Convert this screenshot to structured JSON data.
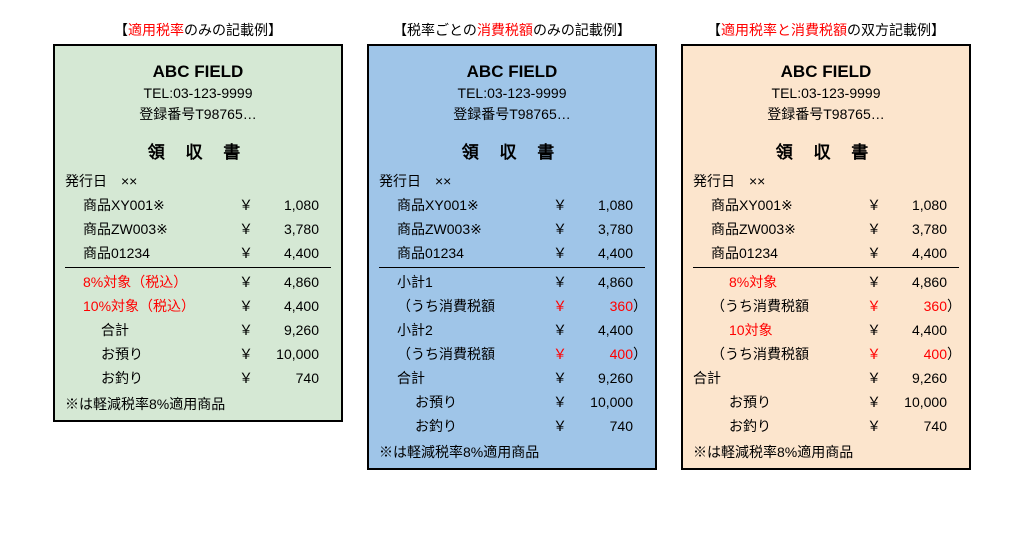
{
  "common": {
    "store": "ABC  FIELD",
    "tel": "TEL:03-123-9999",
    "reg": "登録番号T98765…",
    "doc_title": "領 収 書",
    "issue_label": "発行日",
    "issue_date": "××",
    "yen": "￥",
    "note": "※は軽減税率8%適用商品",
    "items": [
      {
        "name": "商品XY001※",
        "amount": "1,080"
      },
      {
        "name": "商品ZW003※",
        "amount": "3,780"
      },
      {
        "name": "商品01234",
        "amount": "4,400"
      }
    ],
    "okane_azukari": "お預り",
    "otsuri": "お釣り",
    "goukei": "合計",
    "uchi": "（うち消費税額"
  },
  "col1": {
    "title_pre": "【",
    "title_red": "適用税率",
    "title_post": "のみの記載例】",
    "rows": [
      {
        "label": "8%対象（税込）",
        "amount": "4,860",
        "red": true
      },
      {
        "label": "10%対象（税込）",
        "amount": "4,400",
        "red": true
      },
      {
        "label": "合計",
        "amount": "9,260"
      },
      {
        "label": "お預り",
        "amount": "10,000"
      },
      {
        "label": "お釣り",
        "amount": "740"
      }
    ]
  },
  "col2": {
    "title_pre": "【税率ごとの",
    "title_red": "消費税額",
    "title_post": "のみの記載例】",
    "rows": [
      {
        "label": "小計1",
        "amount": "4,860"
      },
      {
        "label": "（うち消費税額",
        "amount": "360",
        "red_amount": true,
        "paren": true
      },
      {
        "label": "小計2",
        "amount": "4,400"
      },
      {
        "label": "（うち消費税額",
        "amount": "400",
        "red_amount": true,
        "paren": true
      },
      {
        "label": "合計",
        "amount": "9,260",
        "tight": true
      },
      {
        "label": "お預り",
        "amount": "10,000",
        "tight": true
      },
      {
        "label": "お釣り",
        "amount": "740"
      }
    ]
  },
  "col3": {
    "title_pre": "【",
    "title_red": "適用税率と消費税額",
    "title_post": "の双方記載例】",
    "rows": [
      {
        "label": "8%対象",
        "amount": "4,860",
        "red": true
      },
      {
        "label": "（うち消費税額",
        "amount": "360",
        "red_amount": true,
        "paren": true
      },
      {
        "label": "10対象",
        "amount": "4,400",
        "red": true
      },
      {
        "label": "（うち消費税額",
        "amount": "400",
        "red_amount": true,
        "paren": true
      },
      {
        "label": "合計",
        "amount": "9,260",
        "tight": true,
        "outdent": true
      },
      {
        "label": "お預り",
        "amount": "10,000",
        "tight": true
      },
      {
        "label": "お釣り",
        "amount": "740",
        "tight": true
      }
    ]
  }
}
